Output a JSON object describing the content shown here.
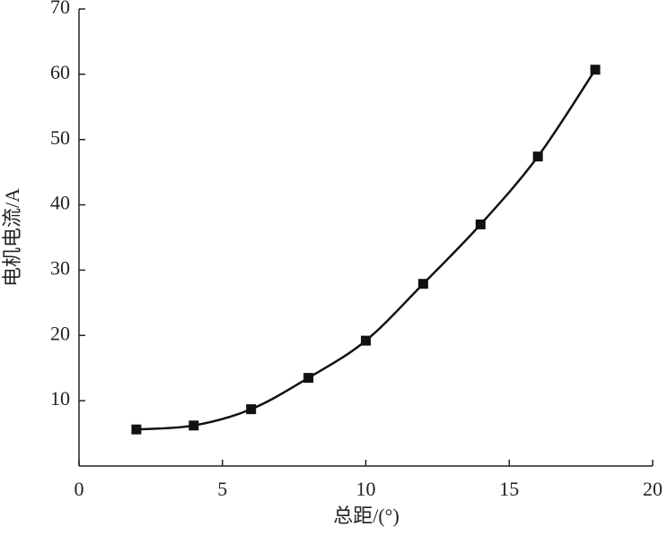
{
  "chart_data": {
    "type": "line",
    "x_label": "总距/(°)",
    "y_label": "电机电流/A",
    "x": [
      2,
      4,
      6,
      8,
      10,
      12,
      14,
      16,
      18
    ],
    "series": [
      {
        "values": [
          5.6,
          6.2,
          8.7,
          13.5,
          19.2,
          27.9,
          37.0,
          47.4,
          60.7
        ],
        "color": "#111111"
      }
    ],
    "xlim": [
      0,
      20
    ],
    "xticks": [
      0,
      5,
      10,
      15,
      20
    ],
    "ylim": [
      0,
      70
    ],
    "yticks": [
      10,
      20,
      30,
      40,
      50,
      60,
      70
    ],
    "marker": "square",
    "smooth": true
  }
}
